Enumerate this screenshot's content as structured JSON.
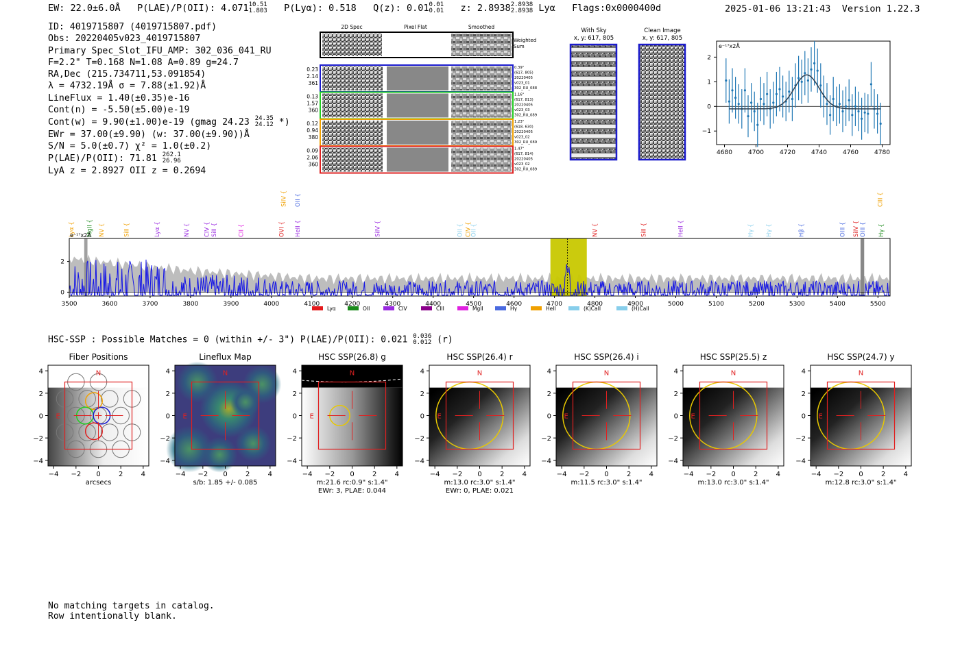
{
  "header": {
    "ew_label": "EW: 22.0±6.0Å",
    "plae_label": "P(LAE)/P(OII): 4.071",
    "plae_hi": "10.51",
    "plae_lo": "1.803",
    "plya_label": "P(Lyα): 0.518",
    "qz_label": "Q(z): 0.01",
    "qz_hi": "0.01",
    "qz_lo": "0.01",
    "z_label": "z: 2.8938",
    "z_hi": "2.8938",
    "z_lo": "2.8938",
    "line_label": "Lyα",
    "flags_label": "Flags:0x0000400d",
    "datetime": "2025-01-06 13:21:43",
    "version": "Version 1.22.3"
  },
  "info": {
    "id": "ID: 4019715807 (4019715807.pdf)",
    "obs": "Obs: 20220405v023_4019715807",
    "spec": "Primary Spec_Slot_IFU_AMP: 302_036_041_RU",
    "fiber": "F=2.2\"  T=0.168  N=1.08  A=0.89  g=24.7",
    "radec": "RA,Dec (215.734711,53.091854)",
    "lambda": "λ = 4732.19Å  σ = 7.88(±1.92)Å",
    "lineflux": "LineFlux = 1.40(±0.35)e-16",
    "contn": "Cont(n) = -5.50(±5.00)e-19",
    "contw": "Cont(w) = 9.90(±1.00)e-19 (gmag 24.23",
    "contw_hi": "24.35",
    "contw_lo": "24.12",
    "contw_tail": "*)",
    "ewr": "EWr = 37.00(±9.90) (w: 37.00(±9.90))Å",
    "sn": "S/N = 5.0(±0.7)  χ² = 1.0(±0.2)",
    "plae": "P(LAE)/P(OII): 71.81",
    "plae_hi": "262.1",
    "plae_lo": "26.96",
    "lyaz": "LyA z = 2.8927  OII z = 0.2694"
  },
  "cutouts": {
    "col_labels": [
      "2D Spec",
      "Pixel Flat",
      "Smoothed"
    ],
    "weighted_label": [
      "Weighted",
      "Sum"
    ],
    "rows": [
      {
        "left": [
          "0.23",
          "2.14",
          "361"
        ],
        "right": [
          "0.39\"",
          "(617, 805)",
          "20220405",
          "v023_01",
          "302_RU_088"
        ],
        "color": "#1a1acc"
      },
      {
        "left": [
          "0.13",
          "1.57",
          "360"
        ],
        "right": [
          "1.16\"",
          "(617, 813)",
          "20220405",
          "v023_03",
          "302_RU_089"
        ],
        "color": "#22cc22"
      },
      {
        "left": [
          "0.12",
          "0.94",
          "380"
        ],
        "right": [
          "1.23\"",
          "(618, 630)",
          "20220405",
          "v023_02",
          "302_RU_089"
        ],
        "color": "#f0a000"
      },
      {
        "left": [
          "0.09",
          "2.06",
          "360"
        ],
        "right": [
          "1.47\"",
          "(617, 814)",
          "20220405",
          "v023_02",
          "302_RU_089"
        ],
        "color": "#dd2222"
      }
    ],
    "with_sky": [
      "With Sky",
      "x, y: 617, 805"
    ],
    "clean_image": [
      "Clean Image",
      "x, y: 617, 805"
    ]
  },
  "line_fit": {
    "unit": "e⁻¹⁷x2Å",
    "x_ticks": [
      "4680",
      "4700",
      "4720",
      "4740",
      "4760",
      "4780"
    ],
    "y_ticks": [
      "2",
      "1",
      "0",
      "−1"
    ],
    "xlim": [
      4675,
      4785
    ],
    "ylim": [
      -1.55,
      2.65
    ],
    "gauss": {
      "amp": 1.38,
      "mu": 4732.2,
      "sigma": 7.9,
      "base": -0.1
    },
    "points": [
      [
        4681,
        1.05,
        0.9
      ],
      [
        4683,
        0.2,
        0.9
      ],
      [
        4685,
        0.65,
        0.9
      ],
      [
        4687,
        0.35,
        0.85
      ],
      [
        4689,
        0.1,
        0.8
      ],
      [
        4691,
        -0.1,
        0.8
      ],
      [
        4693,
        0.65,
        0.9
      ],
      [
        4695,
        -0.4,
        0.85
      ],
      [
        4697,
        0.15,
        0.8
      ],
      [
        4699,
        -0.2,
        0.8
      ],
      [
        4701,
        -0.75,
        0.9
      ],
      [
        4703,
        0.3,
        0.9
      ],
      [
        4705,
        0.1,
        0.85
      ],
      [
        4707,
        0.5,
        0.9
      ],
      [
        4709,
        -0.1,
        0.8
      ],
      [
        4711,
        0.15,
        0.85
      ],
      [
        4713,
        0.5,
        0.9
      ],
      [
        4715,
        0.7,
        0.9
      ],
      [
        4717,
        0.4,
        0.85
      ],
      [
        4719,
        0.2,
        0.8
      ],
      [
        4721,
        0.6,
        0.85
      ],
      [
        4723,
        0.3,
        0.9
      ],
      [
        4725,
        0.85,
        0.9
      ],
      [
        4727,
        1.15,
        0.9
      ],
      [
        4729,
        1.0,
        0.9
      ],
      [
        4731,
        1.35,
        0.9
      ],
      [
        4733,
        1.05,
        0.9
      ],
      [
        4735,
        1.5,
        0.9
      ],
      [
        4737,
        1.75,
        0.9
      ],
      [
        4739,
        1.45,
        0.9
      ],
      [
        4741,
        0.85,
        0.9
      ],
      [
        4743,
        0.4,
        0.85
      ],
      [
        4745,
        0.1,
        0.85
      ],
      [
        4747,
        -0.35,
        0.8
      ],
      [
        4749,
        0.3,
        0.9
      ],
      [
        4751,
        0.0,
        0.8
      ],
      [
        4753,
        0.1,
        0.8
      ],
      [
        4755,
        -0.2,
        0.85
      ],
      [
        4757,
        0.0,
        0.8
      ],
      [
        4759,
        0.25,
        0.85
      ],
      [
        4761,
        -0.35,
        0.85
      ],
      [
        4763,
        0.0,
        0.8
      ],
      [
        4765,
        -0.2,
        0.8
      ],
      [
        4767,
        -0.5,
        0.85
      ],
      [
        4769,
        -0.25,
        0.8
      ],
      [
        4771,
        -0.3,
        0.8
      ],
      [
        4773,
        0.9,
        0.9
      ],
      [
        4775,
        -0.1,
        0.8
      ],
      [
        4777,
        -0.3,
        0.8
      ],
      [
        4779,
        -0.7,
        0.85
      ]
    ]
  },
  "full_spectrum": {
    "unit": "e⁻¹⁷x2Å",
    "xlim": [
      3500,
      5530
    ],
    "ylim": [
      -0.25,
      3.5
    ],
    "x_ticks": [
      "3500",
      "3600",
      "3700",
      "3800",
      "3900",
      "4000",
      "4100",
      "4200",
      "4300",
      "4400",
      "4500",
      "4600",
      "4700",
      "4800",
      "4900",
      "5000",
      "5100",
      "5200",
      "5300",
      "5400",
      "5500"
    ],
    "y_ticks": [
      "2",
      "0"
    ],
    "highlight": [
      4690,
      4780
    ],
    "line_marker": 4732,
    "lines": [
      {
        "label": "Lyα",
        "x": 3505,
        "row": 0,
        "color": "#f0a000"
      },
      {
        "label": "MgII",
        "x": 3550,
        "row": 0,
        "color": "#1a8a1a"
      },
      {
        "label": "NV",
        "x": 3580,
        "row": 0,
        "color": "#f0a000"
      },
      {
        "label": "SiII",
        "x": 3642,
        "row": 0,
        "color": "#f0a000"
      },
      {
        "label": "Lyα",
        "x": 3717,
        "row": 0,
        "color": "#9a2ae0"
      },
      {
        "label": "NV",
        "x": 3790,
        "row": 0,
        "color": "#9a2ae0"
      },
      {
        "label": "CIV",
        "x": 3840,
        "row": 0,
        "color": "#9a2ae0"
      },
      {
        "label": "SiII",
        "x": 3858,
        "row": 0,
        "color": "#9a2ae0"
      },
      {
        "label": "CII",
        "x": 3925,
        "row": 0,
        "color": "#e020e0"
      },
      {
        "label": "OVI",
        "x": 4025,
        "row": 0,
        "color": "#e02020"
      },
      {
        "label": "HeII",
        "x": 4065,
        "row": 0,
        "color": "#9a2ae0"
      },
      {
        "label": "SiIV",
        "x": 4030,
        "row": 1,
        "color": "#f0a000"
      },
      {
        "label": "OII",
        "x": 4065,
        "row": 1,
        "color": "#4a6ae0"
      },
      {
        "label": "SiIV",
        "x": 4262,
        "row": 0,
        "color": "#9a2ae0"
      },
      {
        "label": "OII",
        "x": 4466,
        "row": 0,
        "color": "#87ceeb"
      },
      {
        "label": "CIV",
        "x": 4486,
        "row": 0,
        "color": "#f0a000"
      },
      {
        "label": "OII",
        "x": 4500,
        "row": 0,
        "color": "#87ceeb"
      },
      {
        "label": "NV",
        "x": 4800,
        "row": 0,
        "color": "#e02020"
      },
      {
        "label": "SiII",
        "x": 4920,
        "row": 0,
        "color": "#e02020"
      },
      {
        "label": "HeII",
        "x": 5012,
        "row": 0,
        "color": "#9a2ae0"
      },
      {
        "label": "Hγ",
        "x": 5185,
        "row": 0,
        "color": "#87ceeb"
      },
      {
        "label": "Hγ",
        "x": 5230,
        "row": 0,
        "color": "#87ceeb"
      },
      {
        "label": "Hβ",
        "x": 5310,
        "row": 0,
        "color": "#4a6ae0"
      },
      {
        "label": "OIII",
        "x": 5412,
        "row": 0,
        "color": "#4a6ae0"
      },
      {
        "label": "SiIV",
        "x": 5445,
        "row": 0,
        "color": "#e02020"
      },
      {
        "label": "OIII",
        "x": 5462,
        "row": 0,
        "color": "#4a6ae0"
      },
      {
        "label": "Hγ",
        "x": 5508,
        "row": 0,
        "color": "#1a8a1a"
      },
      {
        "label": "CIII",
        "x": 5505,
        "row": 1,
        "color": "#f0a000"
      }
    ],
    "legend": [
      {
        "label": "Lyα",
        "color": "#e41a1c"
      },
      {
        "label": "OII",
        "color": "#1a8a1a"
      },
      {
        "label": "CIV",
        "color": "#9a2ae0"
      },
      {
        "label": "CIII",
        "color": "#8b008b"
      },
      {
        "label": "MgII",
        "color": "#e020e0"
      },
      {
        "label": "Hγ",
        "color": "#4a6ae0"
      },
      {
        "label": "HeII",
        "color": "#f0a000"
      },
      {
        "label": "(K)CaII",
        "color": "#87ceeb"
      },
      {
        "label": "(H)CaII",
        "color": "#87ceeb"
      }
    ]
  },
  "hsc_header": {
    "text": "HSC-SSP : Possible Matches = 0 (within +/- 3\")  P(LAE)/P(OII): 0.021",
    "hi": "0.036",
    "lo": "0.012",
    "tail": "(r)"
  },
  "panels": {
    "ticks": [
      "−4",
      "−2",
      "0",
      "2",
      "4"
    ],
    "items": [
      {
        "title": "Fiber Positions",
        "caption": [
          "arcsecs"
        ],
        "type": "fiber"
      },
      {
        "title": "Lineflux Map",
        "caption": [
          "s/b: 1.85 +/- 0.085"
        ],
        "type": "flux"
      },
      {
        "title": "HSC SSP(26.8) g",
        "caption": [
          "m:21.6 rc:0.9\"  s:1.4\"",
          "EWr: 3, PLAE: 0.044"
        ],
        "type": "g"
      },
      {
        "title": "HSC SSP(26.4) r",
        "caption": [
          "m:13.0 rc:3.0\"  s:1.4\"",
          "EWr: 0, PLAE: 0.021"
        ],
        "type": "big"
      },
      {
        "title": "HSC SSP(26.4) i",
        "caption": [
          "m:11.5 rc:3.0\"  s:1.4\""
        ],
        "type": "big"
      },
      {
        "title": "HSC SSP(25.5) z",
        "caption": [
          "m:13.0 rc:3.0\"  s:1.4\""
        ],
        "type": "big"
      },
      {
        "title": "HSC SSP(24.7) y",
        "caption": [
          "m:12.8 rc:3.0\"  s:1.4\""
        ],
        "type": "big"
      }
    ],
    "north": "N",
    "east": "E"
  },
  "footer": {
    "line1": "No matching targets in catalog.",
    "line2": "Row intentionally blank."
  }
}
